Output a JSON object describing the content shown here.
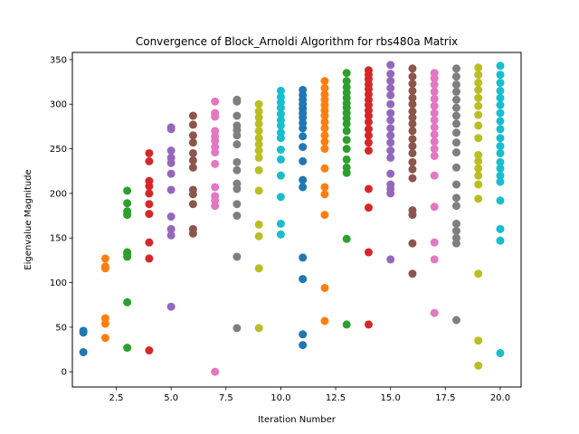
{
  "chart_data": {
    "type": "scatter",
    "title": "Convergence of Block_Arnoldi Algorithm for rbs480a Matrix",
    "xlabel": "Iteration Number",
    "ylabel": "Eigenvalue Magnitude",
    "xlim": [
      0.5,
      20.95
    ],
    "ylim": [
      -17,
      358
    ],
    "x_ticks": [
      "2.5",
      "5.0",
      "7.5",
      "10.0",
      "12.5",
      "15.0",
      "17.5",
      "20.0"
    ],
    "x_tick_values": [
      2.5,
      5,
      7.5,
      10,
      12.5,
      15,
      17.5,
      20
    ],
    "y_ticks": [
      "0",
      "50",
      "100",
      "150",
      "200",
      "250",
      "300",
      "350"
    ],
    "y_tick_values": [
      0,
      50,
      100,
      150,
      200,
      250,
      300,
      350
    ],
    "grid": false,
    "legend": "none",
    "series": [
      {
        "color": "#1f77b4",
        "x": 1,
        "y": [
          22,
          44,
          46
        ]
      },
      {
        "color": "#ff7f0e",
        "x": 2,
        "y": [
          38,
          54,
          60,
          116,
          118,
          127
        ]
      },
      {
        "color": "#2ca02c",
        "x": 3,
        "y": [
          27,
          78,
          129,
          132,
          134,
          176,
          180,
          189,
          203
        ]
      },
      {
        "color": "#d62728",
        "x": 4,
        "y": [
          24,
          127,
          145,
          177,
          188,
          200,
          208,
          214,
          236,
          245
        ]
      },
      {
        "color": "#9467bd",
        "x": 5,
        "y": [
          73,
          153,
          160,
          174,
          204,
          222,
          234,
          240,
          248,
          272,
          274
        ]
      },
      {
        "color": "#8c564b",
        "x": 6,
        "y": [
          155,
          160,
          188,
          199,
          204,
          229,
          237,
          245,
          257,
          265,
          277,
          287
        ]
      },
      {
        "color": "#e377c2",
        "x": 7,
        "y": [
          0,
          186,
          192,
          197,
          207,
          233,
          246,
          252,
          259,
          264,
          270,
          286,
          290,
          303
        ]
      },
      {
        "color": "#7f7f7f",
        "x": 8,
        "y": [
          49,
          129,
          175,
          188,
          205,
          211,
          226,
          235,
          255,
          265,
          271,
          276,
          287,
          303,
          305
        ]
      },
      {
        "color": "#bcbd22",
        "x": 9,
        "y": [
          49,
          116,
          152,
          165,
          203,
          226,
          240,
          248,
          255,
          262,
          270,
          278,
          285,
          292,
          300
        ]
      },
      {
        "color": "#17becf",
        "x": 10,
        "y": [
          154,
          166,
          196,
          220,
          238,
          249,
          262,
          268,
          276,
          282,
          289,
          296,
          302,
          308,
          315
        ]
      },
      {
        "color": "#1f77b4",
        "x": 11,
        "y": [
          30,
          42,
          104,
          128,
          207,
          215,
          236,
          252,
          264,
          273,
          279,
          285,
          290,
          295,
          300,
          305,
          310,
          316
        ]
      },
      {
        "color": "#ff7f0e",
        "x": 12,
        "y": [
          57,
          94,
          176,
          199,
          207,
          228,
          250,
          258,
          265,
          273,
          280,
          287,
          293,
          299,
          305,
          311,
          318,
          326
        ]
      },
      {
        "color": "#2ca02c",
        "x": 13,
        "y": [
          53,
          149,
          223,
          229,
          238,
          250,
          260,
          270,
          278,
          284,
          290,
          296,
          301,
          307,
          313,
          319,
          326,
          335
        ]
      },
      {
        "color": "#d62728",
        "x": 14,
        "y": [
          53,
          134,
          184,
          205,
          248,
          257,
          265,
          272,
          280,
          287,
          293,
          299,
          305,
          311,
          317,
          322,
          328,
          333,
          338
        ]
      },
      {
        "color": "#9467bd",
        "x": 15,
        "y": [
          126,
          200,
          205,
          210,
          222,
          240,
          248,
          257,
          265,
          273,
          282,
          290,
          300,
          310,
          318,
          326,
          334,
          344
        ]
      },
      {
        "color": "#8c564b",
        "x": 16,
        "y": [
          110,
          144,
          176,
          181,
          217,
          227,
          235,
          245,
          253,
          261,
          270,
          278,
          285,
          292,
          300,
          307,
          315,
          323,
          331,
          340
        ]
      },
      {
        "color": "#e377c2",
        "x": 17,
        "y": [
          66,
          126,
          145,
          185,
          220,
          242,
          250,
          258,
          266,
          274,
          282,
          290,
          298,
          306,
          314,
          322,
          329,
          335
        ]
      },
      {
        "color": "#7f7f7f",
        "x": 18,
        "y": [
          58,
          144,
          150,
          158,
          166,
          186,
          195,
          210,
          229,
          246,
          257,
          268,
          278,
          287,
          296,
          305,
          314,
          322,
          331,
          340
        ]
      },
      {
        "color": "#bcbd22",
        "x": 19,
        "y": [
          7,
          35,
          110,
          194,
          210,
          220,
          228,
          236,
          243,
          262,
          276,
          288,
          298,
          307,
          316,
          324,
          333,
          341
        ]
      },
      {
        "color": "#17becf",
        "x": 20,
        "y": [
          21,
          147,
          160,
          192,
          213,
          220,
          228,
          235,
          245,
          253,
          262,
          272,
          281,
          290,
          299,
          307,
          315,
          324,
          333,
          343
        ]
      }
    ]
  }
}
